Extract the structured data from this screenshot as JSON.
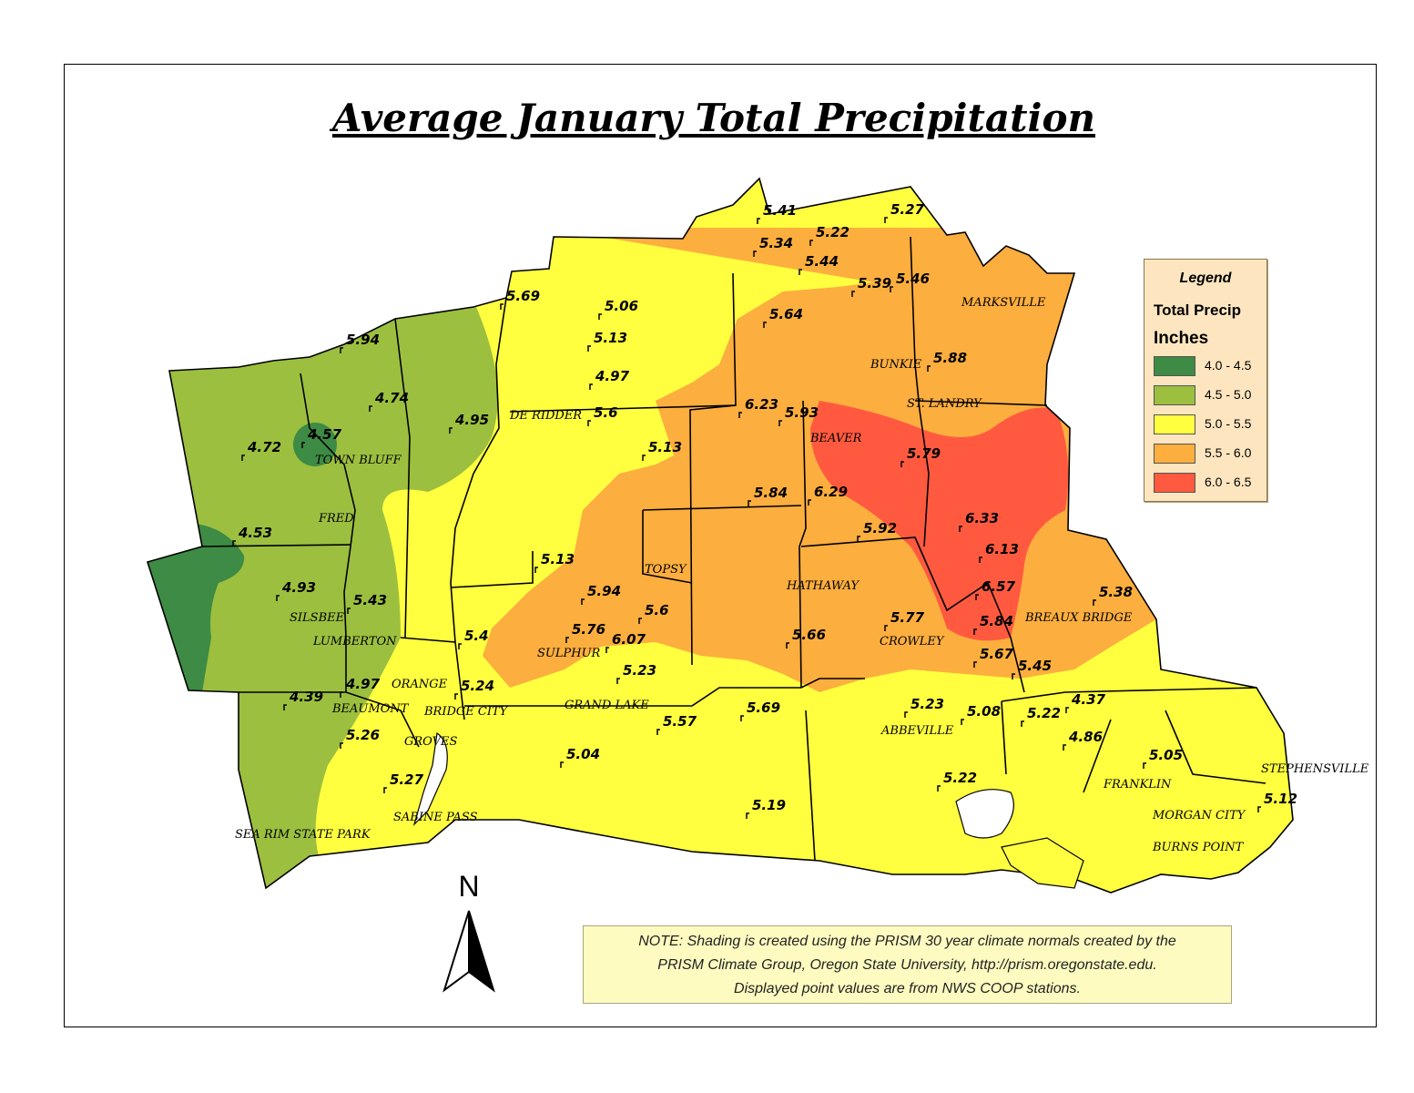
{
  "title": "Average January Total Precipitation",
  "legend": {
    "title": "Legend",
    "subtitle": "Total Precip",
    "unit": "Inches",
    "classes": [
      {
        "label": "4.0 - 4.5",
        "color": "#3d8b44"
      },
      {
        "label": "4.5 - 5.0",
        "color": "#9cbf3f"
      },
      {
        "label": "5.0 - 5.5",
        "color": "#ffff40"
      },
      {
        "label": "5.5 - 6.0",
        "color": "#fcae3e"
      },
      {
        "label": "6.0 - 6.5",
        "color": "#ff5a40"
      }
    ]
  },
  "note": {
    "line1": "NOTE: Shading is created using the PRISM 30 year climate normals created by the",
    "line2": "PRISM Climate Group, Oregon State University, http://prism.oregonstate.edu.",
    "line3": "Displayed point values are from NWS COOP stations."
  },
  "north_arrow": "N",
  "stations": [
    "5.41",
    "5.27",
    "5.22",
    "5.34",
    "5.44",
    "5.39",
    "5.46",
    "5.69",
    "5.06",
    "5.64",
    "5.94",
    "5.13",
    "4.74",
    "5.88",
    "4.97",
    "4.57",
    "4.95",
    "5.6",
    "6.23",
    "5.93",
    "4.72",
    "5.79",
    "5.13",
    "5.84",
    "6.29",
    "4.53",
    "6.33",
    "5.92",
    "5.13",
    "6.13",
    "4.93",
    "5.43",
    "5.94",
    "6.57",
    "5.38",
    "5.6",
    "5.76",
    "6.07",
    "5.4",
    "5.77",
    "5.66",
    "5.84",
    "5.67",
    "4.97",
    "5.24",
    "5.23",
    "5.45",
    "4.39",
    "5.69",
    "5.23",
    "4.37",
    "5.57",
    "5.08",
    "5.22",
    "5.26",
    "4.86",
    "5.04",
    "5.05",
    "5.27",
    "5.22",
    "5.19",
    "5.12"
  ],
  "places": [
    "MARKSVILLE",
    "BUNKIE",
    "ST. LANDRY",
    "DE RIDDER",
    "TOWN BLUFF",
    "BEAVER",
    "FRED",
    "TOPSY",
    "HATHAWAY",
    "SILSBEE",
    "BREAUX BRIDGE",
    "LUMBERTON",
    "SULPHUR",
    "CROWLEY",
    "ORANGE",
    "BEAUMONT",
    "BRIDGE CITY",
    "GRAND LAKE",
    "ABBEVILLE",
    "GROVES",
    "STEPHENSVILLE",
    "FRANKLIN",
    "MORGAN CITY",
    "SABINE PASS",
    "SEA RIM STATE PARK",
    "BURNS POINT"
  ]
}
